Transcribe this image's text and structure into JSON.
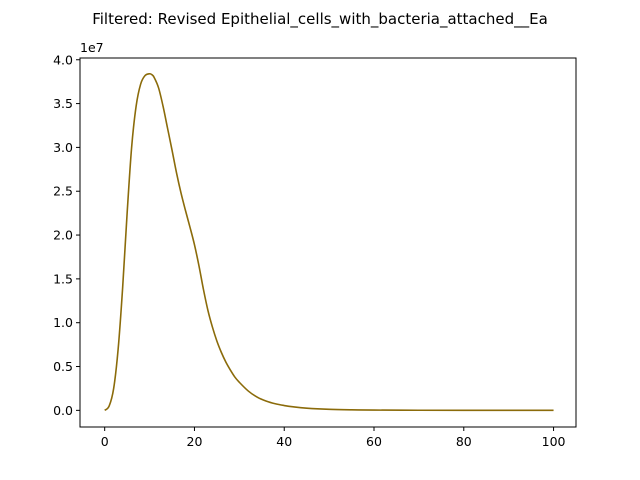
{
  "chart_data": {
    "type": "line",
    "title": "Filtered: Revised Epithelial_cells_with_bacteria_attached__Ea",
    "xlabel": "",
    "ylabel": "",
    "xlim": [
      -5.5,
      105
    ],
    "ylim": [
      -1900000,
      40200000
    ],
    "y_offset_label": "1e7",
    "x_ticks": [
      0,
      20,
      40,
      60,
      80,
      100
    ],
    "x_tick_labels": [
      "0",
      "20",
      "40",
      "60",
      "80",
      "100"
    ],
    "y_ticks": [
      0,
      5000000,
      10000000,
      15000000,
      20000000,
      25000000,
      30000000,
      35000000,
      40000000
    ],
    "y_tick_labels": [
      "0.0",
      "0.5",
      "1.0",
      "1.5",
      "2.0",
      "2.5",
      "3.0",
      "3.5",
      "4.0"
    ],
    "grid": false,
    "series": [
      {
        "name": "",
        "color": "#8b6b0a",
        "x": [
          0,
          1,
          2,
          3,
          4,
          5,
          6,
          7,
          8,
          9,
          10,
          10.5,
          11,
          12,
          13,
          14,
          15,
          16,
          17,
          18,
          19,
          20,
          21,
          22,
          23,
          24,
          25,
          26,
          27,
          28,
          29,
          30,
          32,
          34,
          36,
          38,
          40,
          42,
          45,
          50,
          55,
          60,
          70,
          80,
          90,
          100
        ],
        "y": [
          0,
          500000,
          2500000,
          7000000,
          14000000,
          22500000,
          30000000,
          34700000,
          37200000,
          38200000,
          38400000,
          38300000,
          38000000,
          36800000,
          34700000,
          32200000,
          29700000,
          27100000,
          24800000,
          22800000,
          20900000,
          18900000,
          16500000,
          13800000,
          11400000,
          9500000,
          7900000,
          6600000,
          5500000,
          4600000,
          3800000,
          3200000,
          2200000,
          1500000,
          1050000,
          750000,
          550000,
          400000,
          250000,
          120000,
          60000,
          30000,
          10000,
          4000,
          1500,
          500
        ]
      }
    ]
  }
}
